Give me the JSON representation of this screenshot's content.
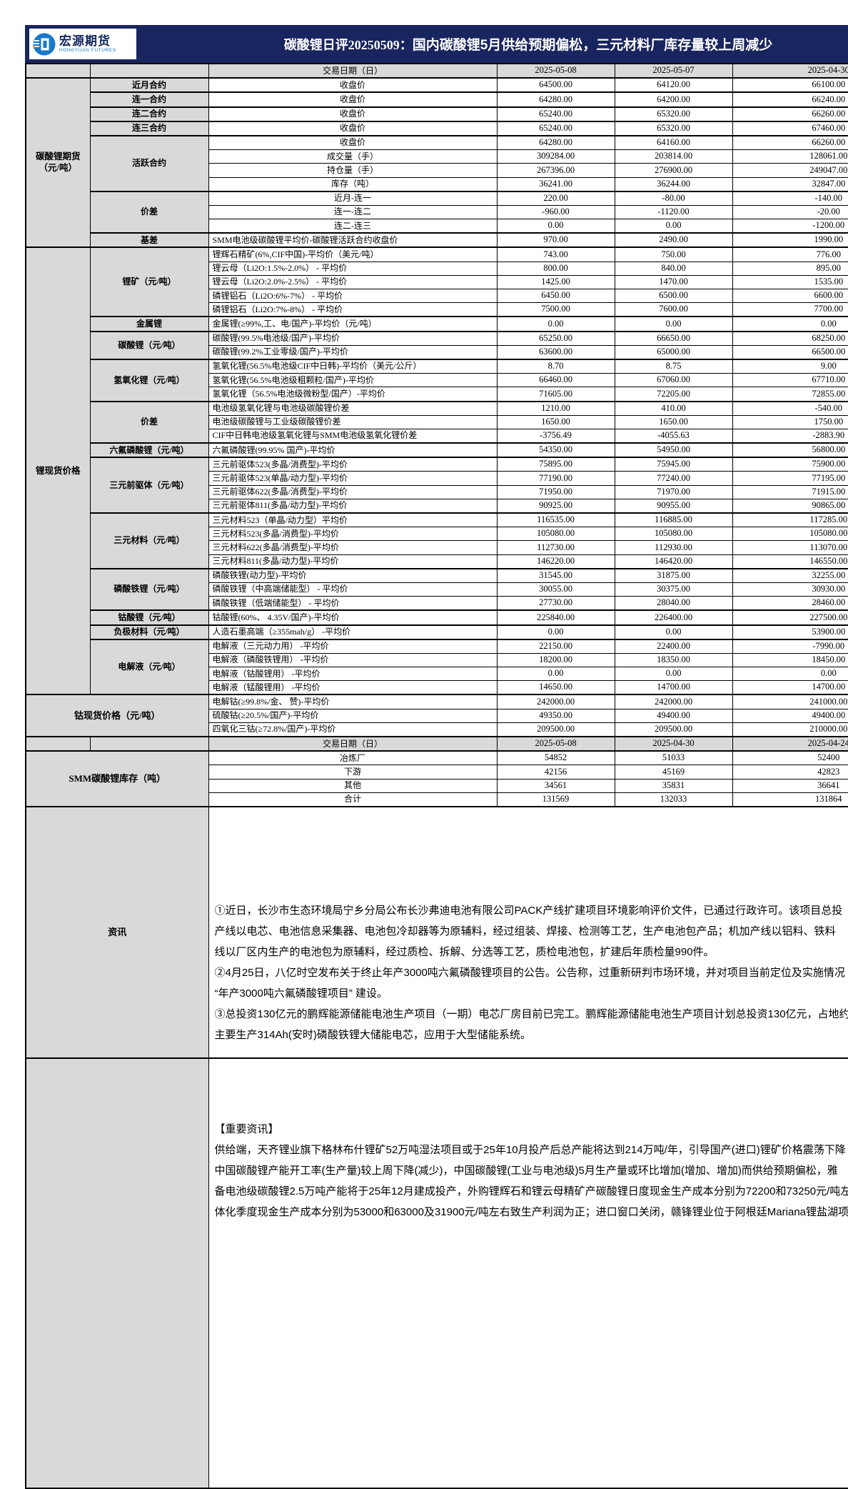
{
  "header": {
    "logo_cn": "宏源期货",
    "logo_en": "HONGYUAN FUTURES",
    "title_prefix": "碳酸锂日评20250509：",
    "title_main": "国内碳酸锂5月供给预期偏松，三元材料厂库存量较上周减少"
  },
  "colors": {
    "header_bg": "#19255e",
    "cell_grey": "#d9d9d9",
    "border": "#000000"
  },
  "dates_row1": {
    "label": "交易日期（日）",
    "dates": [
      "2025-05-08",
      "2025-05-07",
      "2025-04-30"
    ]
  },
  "dates_row2": {
    "label": "交易日期（日）",
    "dates": [
      "2025-05-08",
      "2025-04-30",
      "2025-04-24"
    ]
  },
  "sections": [
    {
      "group": "碳酸锂期货（元/吨）",
      "subs": [
        {
          "label": "近月合约",
          "rows": [
            {
              "m": "收盘价",
              "c": 1,
              "v": [
                "64500.00",
                "64120.00",
                "66100.00"
              ]
            }
          ]
        },
        {
          "label": "连一合约",
          "rows": [
            {
              "m": "收盘价",
              "c": 1,
              "v": [
                "64280.00",
                "64200.00",
                "66240.00"
              ]
            }
          ]
        },
        {
          "label": "连二合约",
          "rows": [
            {
              "m": "收盘价",
              "c": 1,
              "v": [
                "65240.00",
                "65320.00",
                "66260.00"
              ]
            }
          ]
        },
        {
          "label": "连三合约",
          "rows": [
            {
              "m": "收盘价",
              "c": 1,
              "v": [
                "65240.00",
                "65320.00",
                "67460.00"
              ]
            }
          ]
        },
        {
          "label": "活跃合约",
          "rows": [
            {
              "m": "收盘价",
              "c": 1,
              "v": [
                "64280.00",
                "64160.00",
                "66260.00"
              ]
            },
            {
              "m": "成交量（手）",
              "c": 1,
              "v": [
                "309284.00",
                "203814.00",
                "128061.00"
              ]
            },
            {
              "m": "持仓量（手）",
              "c": 1,
              "v": [
                "267396.00",
                "276900.00",
                "249047.00"
              ]
            },
            {
              "m": "库存（吨）",
              "c": 1,
              "v": [
                "36241.00",
                "36244.00",
                "32847.00"
              ]
            }
          ]
        },
        {
          "label": "价差",
          "rows": [
            {
              "m": "近月-连一",
              "c": 1,
              "v": [
                "220.00",
                "-80.00",
                "-140.00"
              ]
            },
            {
              "m": "连一-连二",
              "c": 1,
              "v": [
                "-960.00",
                "-1120.00",
                "-20.00"
              ]
            },
            {
              "m": "连二-连三",
              "c": 1,
              "v": [
                "0.00",
                "0.00",
                "-1200.00"
              ]
            }
          ]
        },
        {
          "label": "基差",
          "rows": [
            {
              "m": "SMM电池级碳酸锂平均价-碳酸锂活跃合约收盘价",
              "c": 0,
              "v": [
                "970.00",
                "2490.00",
                "1990.00"
              ]
            }
          ]
        }
      ]
    },
    {
      "group": "锂现货价格",
      "subs": [
        {
          "label": "锂矿（元/吨）",
          "rows": [
            {
              "m": "锂辉石精矿(6%,CIF中国)-平均价（美元/吨）",
              "c": 0,
              "v": [
                "743.00",
                "750.00",
                "776.00"
              ]
            },
            {
              "m": "锂云母（Li2O:1.5%-2.0%） - 平均价",
              "c": 0,
              "v": [
                "800.00",
                "840.00",
                "895.00"
              ]
            },
            {
              "m": "锂云母（Li2O:2.0%-2.5%） - 平均价",
              "c": 0,
              "v": [
                "1425.00",
                "1470.00",
                "1535.00"
              ]
            },
            {
              "m": "磷锂铝石（Li2O:6%-7%） - 平均价",
              "c": 0,
              "v": [
                "6450.00",
                "6500.00",
                "6600.00"
              ]
            },
            {
              "m": "磷锂铝石（Li2O:7%-8%） - 平均价",
              "c": 0,
              "v": [
                "7500.00",
                "7600.00",
                "7700.00"
              ]
            }
          ]
        },
        {
          "label": "金属锂",
          "rows": [
            {
              "m": "金属锂(≥99%,工、电/国产)-平均价（元/吨）",
              "c": 0,
              "v": [
                "0.00",
                "0.00",
                "0.00"
              ]
            }
          ]
        },
        {
          "label": "碳酸锂（元/吨）",
          "rows": [
            {
              "m": "碳酸锂(99.5%电池级/国产)-平均价",
              "c": 0,
              "v": [
                "65250.00",
                "66650.00",
                "68250.00"
              ]
            },
            {
              "m": "碳酸锂(99.2%工业零级/国产)-平均价",
              "c": 0,
              "v": [
                "63600.00",
                "65000.00",
                "66500.00"
              ]
            }
          ]
        },
        {
          "label": "氢氧化锂（元/吨）",
          "rows": [
            {
              "m": "氢氧化锂(56.5%电池级CIF中日韩)-平均价（美元/公斤）",
              "c": 0,
              "v": [
                "8.70",
                "8.75",
                "9.00"
              ]
            },
            {
              "m": "氢氧化锂(56.5%电池级粗颗粒/国产)-平均价",
              "c": 0,
              "v": [
                "66460.00",
                "67060.00",
                "67710.00"
              ]
            },
            {
              "m": "氢氧化锂（56.5%电池级微粉型/国产）-平均价",
              "c": 0,
              "v": [
                "71605.00",
                "72205.00",
                "72855.00"
              ]
            }
          ]
        },
        {
          "label": "价差",
          "rows": [
            {
              "m": "电池级氢氧化锂与电池级碳酸锂价差",
              "c": 0,
              "v": [
                "1210.00",
                "410.00",
                "-540.00"
              ]
            },
            {
              "m": "电池级碳酸锂与工业级碳酸锂价差",
              "c": 0,
              "v": [
                "1650.00",
                "1650.00",
                "1750.00"
              ]
            },
            {
              "m": "CIF中日韩电池级氢氧化锂与SMM电池级氢氧化锂价差",
              "c": 0,
              "v": [
                "-3756.49",
                "-4055.63",
                "-2883.90"
              ]
            }
          ]
        },
        {
          "label": "六氟磷酸锂（元/吨）",
          "rows": [
            {
              "m": "六氟磷酸锂(99.95% 国产)-平均价",
              "c": 0,
              "v": [
                "54350.00",
                "54950.00",
                "56800.00"
              ]
            }
          ]
        },
        {
          "label": "三元前驱体（元/吨）",
          "rows": [
            {
              "m": "三元前驱体523(多晶/消费型)-平均价",
              "c": 0,
              "v": [
                "75895.00",
                "75945.00",
                "75900.00"
              ]
            },
            {
              "m": "三元前驱体523(单晶/动力型)-平均价",
              "c": 0,
              "v": [
                "77190.00",
                "77240.00",
                "77195.00"
              ]
            },
            {
              "m": "三元前驱体622(多晶/消费型)-平均价",
              "c": 0,
              "v": [
                "71950.00",
                "71970.00",
                "71915.00"
              ]
            },
            {
              "m": "三元前驱体811(多晶/动力型)-平均价",
              "c": 0,
              "v": [
                "90925.00",
                "90955.00",
                "90865.00"
              ]
            }
          ]
        },
        {
          "label": "三元材料（元/吨）",
          "rows": [
            {
              "m": "三元材料523（单晶/动力型）平均价",
              "c": 0,
              "v": [
                "116535.00",
                "116885.00",
                "117285.00"
              ]
            },
            {
              "m": "三元材料523(多晶/消费型)-平均价",
              "c": 0,
              "v": [
                "105080.00",
                "105080.00",
                "105080.00"
              ]
            },
            {
              "m": "三元材料622(多晶/消费型)-平均价",
              "c": 0,
              "v": [
                "112730.00",
                "112930.00",
                "113070.00"
              ]
            },
            {
              "m": "三元材料811(多晶/动力型)-平均价",
              "c": 0,
              "v": [
                "146220.00",
                "146420.00",
                "146550.00"
              ]
            }
          ]
        },
        {
          "label": "磷酸铁锂（元/吨）",
          "rows": [
            {
              "m": "磷酸铁锂(动力型)-平均价",
              "c": 0,
              "v": [
                "31545.00",
                "31875.00",
                "32255.00"
              ]
            },
            {
              "m": "磷酸铁锂（中高端储能型） - 平均价",
              "c": 0,
              "v": [
                "30055.00",
                "30375.00",
                "30930.00"
              ]
            },
            {
              "m": "磷酸铁锂（低端储能型） - 平均价",
              "c": 0,
              "v": [
                "27730.00",
                "28040.00",
                "28460.00"
              ]
            }
          ]
        },
        {
          "label": "钴酸锂（元/吨）",
          "rows": [
            {
              "m": "钴酸锂(60%、 4.35V/国产)-平均价",
              "c": 0,
              "v": [
                "225840.00",
                "226400.00",
                "227500.00"
              ]
            }
          ]
        },
        {
          "label": "负极材料（元/吨）",
          "rows": [
            {
              "m": "人造石墨高端（≥355mah/g） -平均价",
              "c": 0,
              "v": [
                "0.00",
                "0.00",
                "53900.00"
              ]
            }
          ]
        },
        {
          "label": "电解液（元/吨）",
          "rows": [
            {
              "m": "电解液（三元动力用） -平均价",
              "c": 0,
              "v": [
                "22150.00",
                "22400.00",
                "-7990.00"
              ]
            },
            {
              "m": "电解液（磷酸铁锂用） -平均价",
              "c": 0,
              "v": [
                "18200.00",
                "18350.00",
                "18450.00"
              ]
            },
            {
              "m": "电解液（钴酸锂用） -平均价",
              "c": 0,
              "v": [
                "0.00",
                "0.00",
                "0.00"
              ]
            },
            {
              "m": "电解液（锰酸锂用） -平均价",
              "c": 0,
              "v": [
                "14650.00",
                "14700.00",
                "14700.00"
              ]
            }
          ]
        }
      ]
    },
    {
      "label": "钴现货价格（元/吨）",
      "rows": [
        {
          "m": "电解钴(≥99.8%/金、 赞)-平均价",
          "c": 0,
          "v": [
            "242000.00",
            "242000.00",
            "241000.00"
          ]
        },
        {
          "m": "硫酸钴(≥20.5%/国产)-平均价",
          "c": 0,
          "v": [
            "49350.00",
            "49400.00",
            "49400.00"
          ]
        },
        {
          "m": "四氧化三钴(≥72.8%/国产)-平均价",
          "c": 0,
          "v": [
            "209500.00",
            "209500.00",
            "210000.00"
          ]
        }
      ]
    }
  ],
  "inventory": {
    "label": "SMM碳酸锂库存（吨）",
    "rows": [
      {
        "m": "冶炼厂",
        "c": 1,
        "v": [
          "54852",
          "51033",
          "52400"
        ]
      },
      {
        "m": "下游",
        "c": 1,
        "v": [
          "42156",
          "45169",
          "42823"
        ]
      },
      {
        "m": "其他",
        "c": 1,
        "v": [
          "34561",
          "35831",
          "36641"
        ]
      },
      {
        "m": "合计",
        "c": 1,
        "v": [
          "131569",
          "132033",
          "131864"
        ]
      }
    ]
  },
  "news": {
    "label": "资讯",
    "lines": [
      "①近日，长沙市生态环境局宁乡分局公布长沙弗迪电池有限公司PACK产线扩建项目环境影响评价文件，已通过行政许可。该项目总投",
      "产线以电芯、电池信息采集器、电池包冷却器等为原辅料，经过组装、焊接、检测等工艺，生产电池包产品；机加产线以铝料、铁料",
      "线以厂区内生产的电池包为原辅料，经过质检、拆解、分选等工艺，质检电池包，扩建后年质检量990件。",
      "②4月25日，八亿时空发布关于终止年产3000吨六氟磷酸锂项目的公告。公告称，过重新研判市场环境，并对项目当前定位及实施情况",
      "“年产3000吨六氟磷酸锂项目” 建设。",
      "③总投资130亿元的鹏辉能源储能电池生产项目（一期）电芯厂房目前已完工。鹏辉能源储能电池生产项目计划总投资130亿元，占地约",
      "主要生产314Ah(安时)磷酸铁锂大储能电芯，应用于大型储能系统。"
    ]
  },
  "important": {
    "heading": "【重要资讯】",
    "lines": [
      "供给端，天齐锂业旗下格林布什锂矿52万吨湿法项目或于25年10月投产后总产能将达到214万吨/年，引导国产(进口)锂矿价格震荡下降",
      "中国碳酸锂产能开工率(生产量)较上周下降(减少)，中国碳酸锂(工业与电池级)5月生产量或环比增加(增加、增加)而供给预期偏松，雅",
      "备电池级碳酸锂2.5万吨产能将于25年12月建成投产，外购锂辉石和锂云母精矿产碳酸锂日度现金生产成本分别为72200和73250元/吨左",
      "体化季度现金生产成本分别为53000和63000及31900元/吨左右致生产利润为正；进口窗口关闭，赣锋锂业位于阿根廷Mariana锂盐湖项目"
    ]
  }
}
